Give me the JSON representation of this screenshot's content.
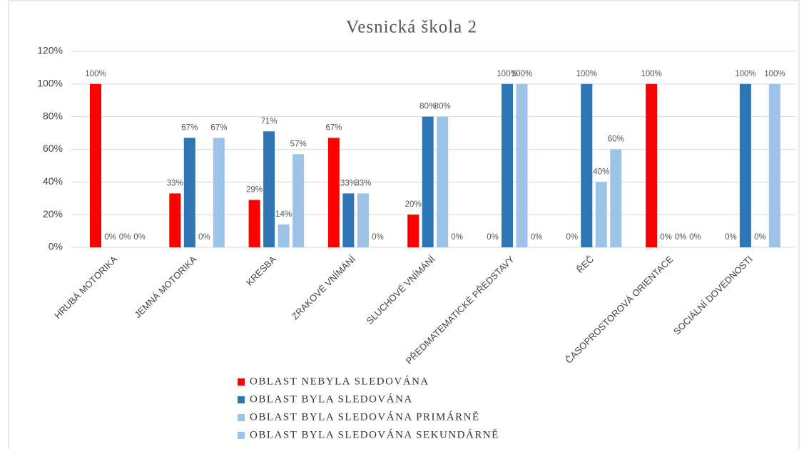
{
  "chart_data": {
    "type": "bar",
    "title": "Vesnická škola 2",
    "categories": [
      "HRUBÁ MOTORIKA",
      "JEMNÁ MOTORIKA",
      "KRESBA",
      "ZRAKOVÉ VNÍMÁNÍ",
      "SLUCHOVÉ VNÍMÁNÍ",
      "PŘEDMATEMATICKÉ PŘEDSTAVY",
      "ŘEČ",
      "ČASOPROSTOROVÁ ORIENTACE",
      "SOCIÁLNÍ DOVEDNOSTI"
    ],
    "series": [
      {
        "name": "OBLAST NEBYLA SLEDOVÁNA",
        "color": "#ff0000",
        "values": [
          100,
          33,
          29,
          67,
          20,
          0,
          0,
          100,
          0
        ],
        "value_labels": [
          "100%",
          "33%",
          "29%",
          "67%",
          "20%",
          "0%",
          "0%",
          "100%",
          "0%"
        ]
      },
      {
        "name": "OBLAST BYLA SLEDOVÁNA",
        "color": "#2e75b6",
        "values": [
          0,
          67,
          71,
          33,
          80,
          100,
          100,
          0,
          100
        ],
        "value_labels": [
          "0%",
          "67%",
          "71%",
          "33%",
          "80%",
          "100%",
          "100%",
          "0%",
          "100%"
        ]
      },
      {
        "name": "OBLAST BYLA SLEDOVÁNA PRIMÁRNĚ",
        "color": "#9dc3e6",
        "values": [
          0,
          0,
          14,
          33,
          80,
          100,
          40,
          0,
          0
        ],
        "value_labels": [
          "0%",
          "0%",
          "14%",
          "33%",
          "80%",
          "100%",
          "40%",
          "0%",
          "0%"
        ]
      },
      {
        "name": "OBLAST BYLA SLEDOVÁNA SEKUNDÁRNĚ",
        "color": "#9dc3e6",
        "values": [
          0,
          67,
          57,
          0,
          0,
          0,
          60,
          0,
          100
        ],
        "value_labels": [
          "0%",
          "67%",
          "57%",
          "0%",
          "0%",
          "0%",
          "60%",
          "0%",
          "100%"
        ]
      }
    ],
    "ylim": [
      0,
      120
    ],
    "yticks": [
      {
        "value": 0,
        "label": "0%"
      },
      {
        "value": 20,
        "label": "20%"
      },
      {
        "value": 40,
        "label": "40%"
      },
      {
        "value": 60,
        "label": "60%"
      },
      {
        "value": 80,
        "label": "80%"
      },
      {
        "value": 100,
        "label": "100%"
      },
      {
        "value": 120,
        "label": "120%"
      }
    ],
    "grid": true,
    "legend": "bottom"
  }
}
